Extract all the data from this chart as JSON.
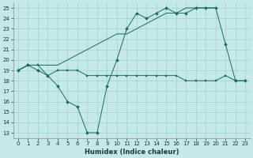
{
  "xlabel": "Humidex (Indice chaleur)",
  "background_color": "#c5e8e8",
  "grid_color": "#a8d0d0",
  "line_color": "#1a6b5a",
  "xlim": [
    -0.5,
    23.5
  ],
  "ylim": [
    12.5,
    25.5
  ],
  "yticks": [
    13,
    14,
    15,
    16,
    17,
    18,
    19,
    20,
    21,
    22,
    23,
    24,
    25
  ],
  "xticks": [
    0,
    1,
    2,
    3,
    4,
    5,
    6,
    7,
    8,
    9,
    10,
    11,
    12,
    13,
    14,
    15,
    16,
    17,
    18,
    19,
    20,
    21,
    22,
    23
  ],
  "series_flat": {
    "x": [
      0,
      1,
      2,
      3,
      4,
      5,
      6,
      7,
      8,
      9,
      10,
      11,
      12,
      13,
      14,
      15,
      16,
      17,
      18,
      19,
      20,
      21,
      22,
      23
    ],
    "y": [
      19.0,
      19.5,
      19.5,
      18.5,
      19.0,
      19.0,
      19.0,
      18.5,
      18.5,
      18.5,
      18.5,
      18.5,
      18.5,
      18.5,
      18.5,
      18.5,
      18.5,
      18.0,
      18.0,
      18.0,
      18.0,
      18.5,
      18.0,
      18.0
    ]
  },
  "series_zigzag": {
    "x": [
      0,
      1,
      2,
      3,
      4,
      5,
      6,
      7,
      8,
      9,
      10,
      11,
      12,
      13,
      14,
      15,
      16,
      17,
      18,
      19,
      20,
      21,
      22,
      23
    ],
    "y": [
      19.0,
      19.5,
      19.0,
      18.5,
      17.5,
      16.0,
      15.5,
      13.0,
      13.0,
      17.5,
      20.0,
      23.0,
      24.5,
      24.0,
      24.5,
      25.0,
      24.5,
      24.5,
      25.0,
      25.0,
      25.0,
      21.5,
      18.0,
      18.0
    ]
  },
  "series_diagonal": {
    "x": [
      0,
      1,
      2,
      3,
      4,
      5,
      6,
      7,
      8,
      9,
      10,
      11,
      12,
      13,
      14,
      15,
      16,
      17,
      18,
      19,
      20
    ],
    "y": [
      19.0,
      19.5,
      19.5,
      19.5,
      19.5,
      20.0,
      20.5,
      21.0,
      21.5,
      22.0,
      22.5,
      22.5,
      23.0,
      23.5,
      24.0,
      24.5,
      24.5,
      25.0,
      25.0,
      25.0,
      25.0
    ]
  }
}
